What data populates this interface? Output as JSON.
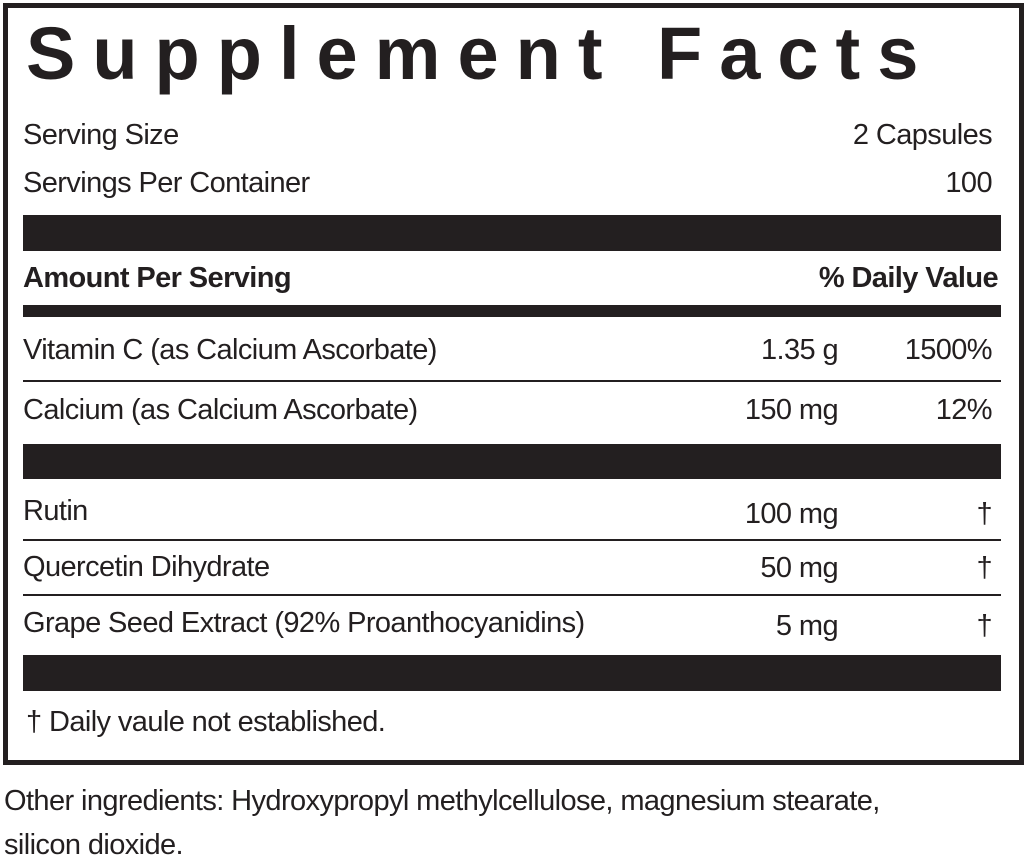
{
  "title": "Supplement Facts",
  "serving_size": {
    "label": "Serving Size",
    "value": "2 Capsules"
  },
  "servings_per_container": {
    "label": "Servings Per Container",
    "value": "100"
  },
  "header": {
    "amount": "Amount Per Serving",
    "daily_value": "% Daily Value"
  },
  "nutrients": [
    {
      "name": "Vitamin C (as Calcium Ascorbate)",
      "amount": "1.35 g",
      "dv": "1500%"
    },
    {
      "name": "Calcium (as Calcium Ascorbate)",
      "amount": "150 mg",
      "dv": "12%"
    }
  ],
  "other_nutrients": [
    {
      "name": "Rutin",
      "amount": "100 mg",
      "dv": "†"
    },
    {
      "name": "Quercetin Dihydrate",
      "amount": "50 mg",
      "dv": "†"
    },
    {
      "name": "Grape Seed Extract (92% Proanthocyanidins)",
      "amount": "5 mg",
      "dv": "†"
    }
  ],
  "footnote": "† Daily vaule not established.",
  "other_ingredients": [
    "Other ingredients: Hydroxypropyl methylcellulose, magnesium stearate,",
    "silicon dioxide."
  ]
}
